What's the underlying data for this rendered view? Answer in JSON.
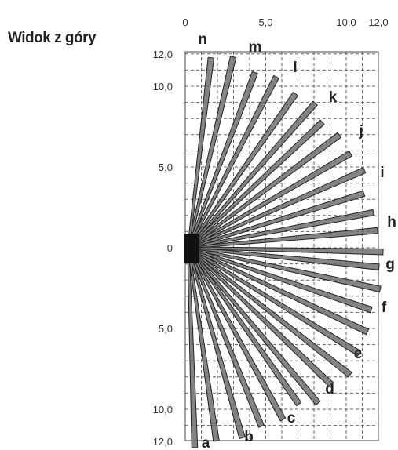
{
  "title": "Widok z góry",
  "top_axis_labels": [
    "0",
    "5,0",
    "10,0",
    "12,0"
  ],
  "left_axis_labels": [
    "12,0",
    "10,0",
    "5,0",
    "0",
    "5,0",
    "10,0",
    "12,0"
  ],
  "zones": [
    "a",
    "b",
    "c",
    "d",
    "e",
    "f",
    "g",
    "h",
    "i",
    "j",
    "k",
    "l",
    "m",
    "n"
  ],
  "colors": {
    "beam_fill": "#6e6e6e",
    "beam_stroke": "#222222",
    "grid": "#666666",
    "sensor": "#111111"
  }
}
